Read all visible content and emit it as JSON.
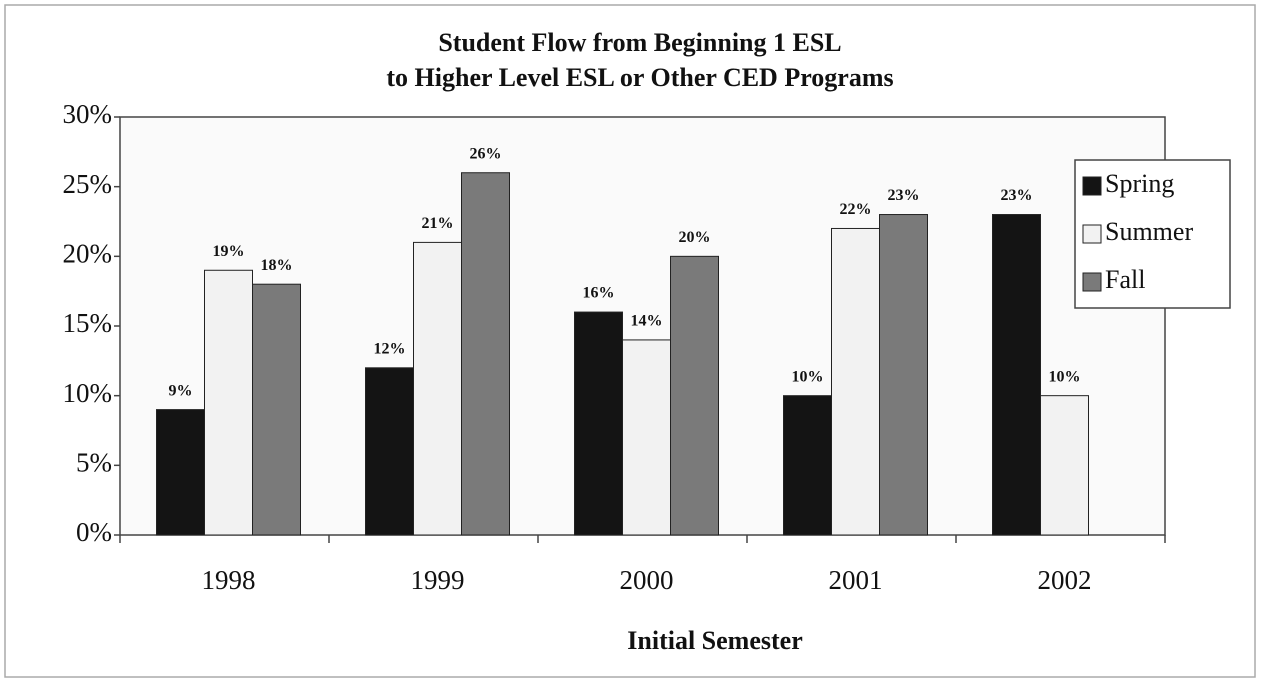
{
  "chart_data": {
    "type": "bar",
    "title": [
      "Student Flow from Beginning 1 ESL",
      "to Higher Level ESL or Other CED Programs"
    ],
    "x_label": "Initial Semester",
    "categories": [
      "1998",
      "1999",
      "2000",
      "2001",
      "2002"
    ],
    "series": [
      {
        "name": "Spring",
        "color": "#141414",
        "values": [
          9,
          12,
          16,
          10,
          23
        ],
        "value_labels": [
          "9%",
          "12%",
          "16%",
          "10%",
          "23%"
        ]
      },
      {
        "name": "Summer",
        "color": "#f2f2f2",
        "values": [
          19,
          21,
          14,
          22,
          10
        ],
        "value_labels": [
          "19%",
          "21%",
          "14%",
          "22%",
          "10%"
        ]
      },
      {
        "name": "Fall",
        "color": "#7a7a7a",
        "values": [
          18,
          26,
          20,
          23,
          null
        ],
        "value_labels": [
          "18%",
          "26%",
          "20%",
          "23%",
          null
        ]
      }
    ],
    "ylim": [
      0,
      30
    ],
    "yticks": [
      {
        "value": 0,
        "label": "0%"
      },
      {
        "value": 5,
        "label": "5%"
      },
      {
        "value": 10,
        "label": "10%"
      },
      {
        "value": 15,
        "label": "15%"
      },
      {
        "value": 20,
        "label": "20%"
      },
      {
        "value": 25,
        "label": "25%"
      },
      {
        "value": 30,
        "label": "30%"
      }
    ],
    "legend": "upper right"
  }
}
